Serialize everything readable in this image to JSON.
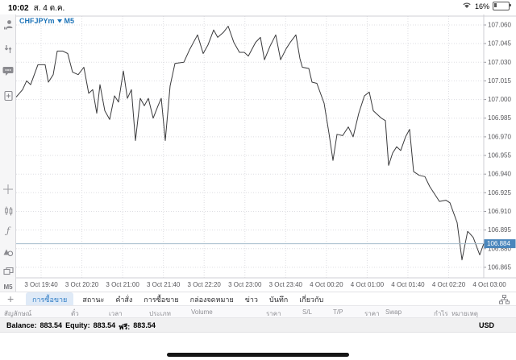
{
  "status_bar": {
    "time": "10:02",
    "date": "ส. 4 ต.ค.",
    "battery_percent": "16%"
  },
  "symbol_bar": {
    "symbol": "CHFJPYm",
    "timeframe": "M5"
  },
  "sidebar": {
    "indicators_glyph": "ƒ",
    "timeframe_label": "M5"
  },
  "tab_bar": {
    "add_label": "+",
    "tabs": [
      {
        "label": "การซื้อขาย",
        "name": "tab-trade",
        "selected": true
      },
      {
        "label": "สถานะ",
        "name": "tab-positions",
        "selected": false
      },
      {
        "label": "คำสั่ง",
        "name": "tab-orders",
        "selected": false
      },
      {
        "label": "การซื้อขาย",
        "name": "tab-history",
        "selected": false
      },
      {
        "label": "กล่องจดหมาย",
        "name": "tab-mailbox",
        "selected": false
      },
      {
        "label": "ข่าว",
        "name": "tab-news",
        "selected": false
      },
      {
        "label": "บันทึก",
        "name": "tab-journal",
        "selected": false
      },
      {
        "label": "เกี่ยวกับ",
        "name": "tab-about",
        "selected": false
      }
    ]
  },
  "table": {
    "columns": [
      {
        "label": "สัญลักษณ์",
        "name": "col-symbol"
      },
      {
        "label": "ตั๋ว",
        "name": "col-ticket"
      },
      {
        "label": "เวลา",
        "name": "col-time"
      },
      {
        "label": "ประเภท",
        "name": "col-type"
      },
      {
        "label": "Volume",
        "name": "col-volume"
      },
      {
        "label": "ราคา",
        "name": "col-price-open"
      },
      {
        "label": "S/L",
        "name": "col-sl"
      },
      {
        "label": "T/P",
        "name": "col-tp"
      },
      {
        "label": "ราคา",
        "name": "col-price-current"
      },
      {
        "label": "Swap",
        "name": "col-swap"
      },
      {
        "label": "กำไร",
        "name": "col-profit"
      },
      {
        "label": "หมายเหตุ",
        "name": "col-comment"
      }
    ]
  },
  "footer": {
    "balance_label": "Balance:",
    "balance_value": "883.54",
    "equity_label": "Equity:",
    "equity_value": "883.54",
    "free_label": "ฟรี:",
    "free_value": "883.54",
    "currency": "USD"
  },
  "chart_data": {
    "type": "line",
    "title": "CHFJPYm M5",
    "symbol": "CHFJPYm",
    "timeframe": "M5",
    "current_price": 106.884,
    "line_color": "#3a3a3c",
    "badge_color": "#4a86bc",
    "grid": true,
    "y_axis": {
      "min": 106.857,
      "max": 107.066,
      "step": 0.015,
      "labels": [
        "107.060",
        "107.045",
        "107.030",
        "107.015",
        "107.000",
        "106.985",
        "106.970",
        "106.955",
        "106.940",
        "106.925",
        "106.910",
        "106.895",
        "106.880",
        "106.865"
      ]
    },
    "x_axis": {
      "labels": [
        "3 Oct 19:40",
        "3 Oct 20:20",
        "3 Oct 21:00",
        "3 Oct 21:40",
        "3 Oct 22:20",
        "3 Oct 23:00",
        "3 Oct 23:40",
        "4 Oct 00:20",
        "4 Oct 01:00",
        "4 Oct 01:40",
        "4 Oct 02:20",
        "4 Oct 03:00"
      ]
    },
    "series": [
      {
        "name": "CHFJPYm close (M5)",
        "points": [
          [
            20,
            107.002
          ],
          [
            28,
            107.008
          ],
          [
            33,
            107.015
          ],
          [
            38,
            107.012
          ],
          [
            47,
            107.028
          ],
          [
            56,
            107.028
          ],
          [
            60,
            107.014
          ],
          [
            66,
            107.02
          ],
          [
            71,
            107.039
          ],
          [
            78,
            107.039
          ],
          [
            84,
            107.037
          ],
          [
            90,
            107.022
          ],
          [
            97,
            107.02
          ],
          [
            104,
            107.026
          ],
          [
            110,
            107.005
          ],
          [
            115,
            107.008
          ],
          [
            120,
            106.989
          ],
          [
            124,
            107.012
          ],
          [
            130,
            106.991
          ],
          [
            136,
            106.984
          ],
          [
            142,
            107.003
          ],
          [
            147,
            106.998
          ],
          [
            153,
            107.023
          ],
          [
            158,
            107.001
          ],
          [
            163,
            107.008
          ],
          [
            168,
            106.967
          ],
          [
            174,
            107.001
          ],
          [
            179,
            106.995
          ],
          [
            184,
            107.001
          ],
          [
            190,
            106.985
          ],
          [
            196,
            106.995
          ],
          [
            200,
            107.001
          ],
          [
            205,
            106.967
          ],
          [
            211,
            107.011
          ],
          [
            217,
            107.029
          ],
          [
            228,
            107.03
          ],
          [
            235,
            107.04
          ],
          [
            245,
            107.052
          ],
          [
            252,
            107.037
          ],
          [
            258,
            107.044
          ],
          [
            265,
            107.056
          ],
          [
            270,
            107.05
          ],
          [
            277,
            107.054
          ],
          [
            283,
            107.059
          ],
          [
            290,
            107.046
          ],
          [
            297,
            107.038
          ],
          [
            303,
            107.038
          ],
          [
            308,
            107.035
          ],
          [
            317,
            107.046
          ],
          [
            323,
            107.05
          ],
          [
            328,
            107.032
          ],
          [
            335,
            107.043
          ],
          [
            342,
            107.052
          ],
          [
            348,
            107.032
          ],
          [
            355,
            107.041
          ],
          [
            360,
            107.046
          ],
          [
            367,
            107.052
          ],
          [
            372,
            107.033
          ],
          [
            375,
            107.026
          ],
          [
            383,
            107.025
          ],
          [
            387,
            107.014
          ],
          [
            393,
            107.013
          ],
          [
            402,
            106.997
          ],
          [
            408,
            106.973
          ],
          [
            413,
            106.951
          ],
          [
            418,
            106.972
          ],
          [
            425,
            106.971
          ],
          [
            432,
            106.978
          ],
          [
            438,
            106.97
          ],
          [
            445,
            106.989
          ],
          [
            452,
            107.003
          ],
          [
            458,
            107.006
          ],
          [
            463,
            106.991
          ],
          [
            473,
            106.985
          ],
          [
            478,
            106.983
          ],
          [
            482,
            106.947
          ],
          [
            487,
            106.957
          ],
          [
            492,
            106.962
          ],
          [
            497,
            106.959
          ],
          [
            503,
            106.97
          ],
          [
            508,
            106.976
          ],
          [
            513,
            106.942
          ],
          [
            520,
            106.939
          ],
          [
            527,
            106.938
          ],
          [
            533,
            106.93
          ],
          [
            540,
            106.923
          ],
          [
            545,
            106.918
          ],
          [
            553,
            106.919
          ],
          [
            558,
            106.917
          ],
          [
            567,
            106.901
          ],
          [
            573,
            106.871
          ],
          [
            580,
            106.894
          ],
          [
            583,
            106.892
          ],
          [
            587,
            106.889
          ],
          [
            595,
            106.875
          ],
          [
            600,
            106.884
          ]
        ]
      }
    ]
  }
}
